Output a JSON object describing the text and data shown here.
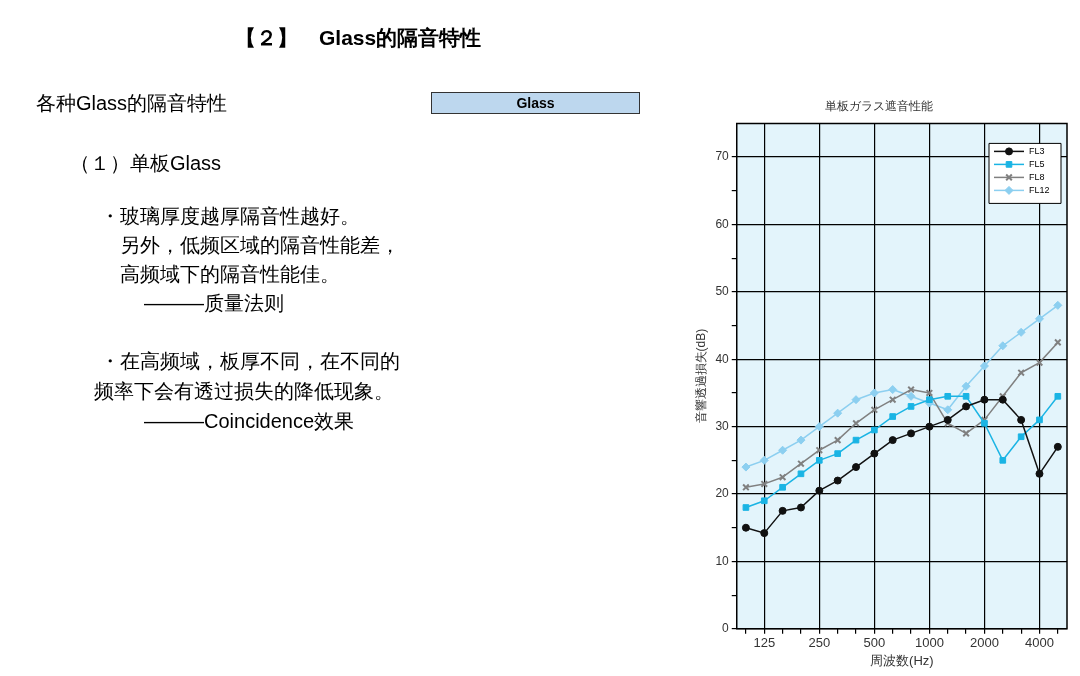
{
  "chart_data": {
    "type": "line",
    "title": "単板ガラス遮音性能",
    "xlabel": "周波数(Hz)",
    "ylabel": "音響透過損失(dB)",
    "categories": [
      null,
      "125",
      null,
      null,
      "250",
      null,
      null,
      "500",
      null,
      null,
      "1000",
      null,
      null,
      "2000",
      null,
      null,
      "4000",
      null
    ],
    "series": [
      {
        "name": "FL3",
        "color": "#111111",
        "marker": "circle",
        "values": [
          15,
          14.2,
          17.5,
          18,
          20.5,
          22,
          24,
          26,
          28,
          29,
          30,
          31,
          33,
          34,
          34,
          31,
          23,
          27
        ]
      },
      {
        "name": "FL5",
        "color": "#1ab4e4",
        "marker": "square",
        "values": [
          18,
          19,
          21,
          23,
          25,
          26,
          28,
          29.5,
          31.5,
          33,
          34,
          34.5,
          34.5,
          30.5,
          25,
          28.5,
          31,
          34.5
        ]
      },
      {
        "name": "FL8",
        "color": "#808080",
        "marker": "cross",
        "values": [
          21,
          21.5,
          22.5,
          24.5,
          26.5,
          28,
          30.5,
          32.5,
          34,
          35.5,
          35,
          30.5,
          29,
          31,
          34.5,
          38,
          39.5,
          42.5
        ]
      },
      {
        "name": "FL12",
        "color": "#8ccff0",
        "marker": "diamond",
        "values": [
          24,
          25,
          26.5,
          28,
          30,
          32,
          34,
          35,
          35.5,
          34.5,
          33.5,
          32.5,
          36,
          39,
          42,
          44,
          46,
          48
        ]
      }
    ],
    "ylim": [
      0,
      75
    ],
    "yticks": [
      0,
      {
        "value": 5,
        "label": null
      },
      10,
      {
        "value": 15,
        "label": null
      },
      20,
      {
        "value": 25,
        "label": null
      },
      30,
      {
        "value": 35,
        "label": null
      },
      40,
      {
        "value": 45,
        "label": null
      },
      50,
      {
        "value": 55,
        "label": null
      },
      60,
      {
        "value": 65,
        "label": null
      },
      70
    ],
    "grid": true,
    "legend": "top right",
    "line_style": "solid",
    "annotations": [
      "【２】　Glass的隔音特性",
      "各种Glass的隔音特性",
      "Glass",
      "（１）单板Glass",
      "・玻璃厚度越厚隔音性越好。",
      "另外，低频区域的隔音性能差，",
      "高频域下的隔音性能佳。",
      "———质量法则",
      "・在高频域，板厚不同，在不同的",
      "频率下会有透过损失的降低现象。",
      "———Coincidence效果"
    ]
  }
}
